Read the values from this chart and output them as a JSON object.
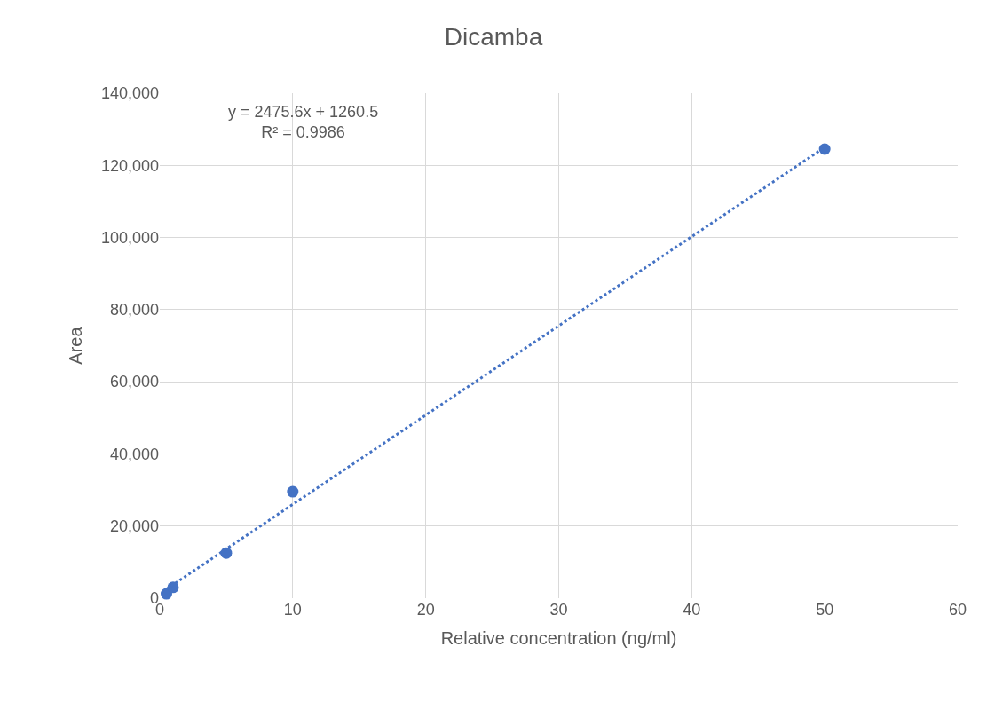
{
  "chart_data": {
    "type": "scatter",
    "title": "Dicamba",
    "xlabel": "Relative concentration (ng/ml)",
    "ylabel": "Area",
    "series": [
      {
        "color": "#4472c4",
        "x": [
          0.5,
          1,
          5,
          10,
          50
        ],
        "values": [
          1200,
          3000,
          12500,
          29500,
          124500
        ],
        "marker": "circle"
      },
      {
        "type": "line",
        "color": "#4472c4",
        "x": [
          0.5,
          50
        ],
        "values": [
          2500,
          125000
        ],
        "line_style": "dotted",
        "marker": "none"
      }
    ],
    "annotations": [
      "y = 2475.6x + 1260.5\nR² = 0.9986"
    ],
    "xlim": [
      0,
      60
    ],
    "xticks": [
      0,
      10,
      20,
      30,
      40,
      50,
      60
    ],
    "ylim": [
      0,
      140000
    ],
    "yticks": [
      {
        "value": 0,
        "label": "0"
      },
      {
        "value": 20000,
        "label": "20,000"
      },
      {
        "value": 40000,
        "label": "40,000"
      },
      {
        "value": 60000,
        "label": "60,000"
      },
      {
        "value": 80000,
        "label": "80,000"
      },
      {
        "value": 100000,
        "label": "100,000"
      },
      {
        "value": 120000,
        "label": "120,000"
      },
      {
        "value": 140000,
        "label": "140,000"
      }
    ],
    "grid": true,
    "legend": false
  }
}
